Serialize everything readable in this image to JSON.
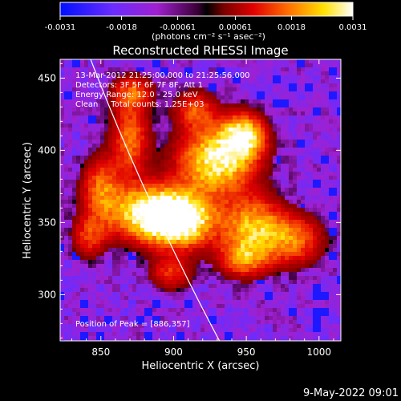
{
  "colorbar": {
    "tick_labels": [
      "-0.0031",
      "-0.0018",
      "-0.00061",
      "0.00061",
      "0.0018",
      "0.0031"
    ],
    "tick_values": [
      -0.0031,
      -0.0018,
      -0.00061,
      0.00061,
      0.0018,
      0.0031
    ],
    "range": [
      -0.0031,
      0.0031
    ],
    "units_label": "(photons cm⁻² s⁻¹ asec⁻²)"
  },
  "chart_data": {
    "type": "heatmap",
    "title": "Reconstructed RHESSI Image",
    "xlabel": "Heliocentric X (arcsec)",
    "ylabel": "Heliocentric Y (arcsec)",
    "xlim": [
      822,
      1015
    ],
    "ylim": [
      268,
      463
    ],
    "xticks": [
      850,
      900,
      950,
      1000
    ],
    "yticks": [
      300,
      350,
      400,
      450
    ],
    "annotations": [
      "13-Mar-2012 21:25:00.000 to 21:25:56.000",
      "Detectors: 3F 5F 6F 7F 8F, Att 1",
      "Energy Range: 12.0 - 25.0 keV",
      "Clean     Total counts: 1.25E+03"
    ],
    "peak_label": "Position of Peak = [886,357]",
    "peak": [
      886,
      357
    ],
    "limb_curve": {
      "x_top": 845,
      "x_bottom": 930
    },
    "sources": [
      {
        "x": 886,
        "y": 357,
        "sx": 22,
        "sy": 13,
        "amp": 1.0
      },
      {
        "x": 905,
        "y": 350,
        "sx": 16,
        "sy": 12,
        "amp": 0.85
      },
      {
        "x": 930,
        "y": 393,
        "sx": 18,
        "sy": 16,
        "amp": 0.95
      },
      {
        "x": 948,
        "y": 410,
        "sx": 10,
        "sy": 10,
        "amp": 0.85
      },
      {
        "x": 955,
        "y": 347,
        "sx": 14,
        "sy": 14,
        "amp": 0.7
      },
      {
        "x": 948,
        "y": 325,
        "sx": 12,
        "sy": 9,
        "amp": 0.55
      },
      {
        "x": 982,
        "y": 338,
        "sx": 14,
        "sy": 12,
        "amp": 0.55
      },
      {
        "x": 870,
        "y": 408,
        "sx": 9,
        "sy": 18,
        "amp": 0.55
      },
      {
        "x": 850,
        "y": 375,
        "sx": 9,
        "sy": 14,
        "amp": 0.5
      },
      {
        "x": 872,
        "y": 440,
        "sx": 10,
        "sy": 8,
        "amp": 0.45
      },
      {
        "x": 915,
        "y": 428,
        "sx": 10,
        "sy": 9,
        "amp": 0.45
      },
      {
        "x": 842,
        "y": 340,
        "sx": 8,
        "sy": 10,
        "amp": 0.4
      },
      {
        "x": 898,
        "y": 315,
        "sx": 10,
        "sy": 8,
        "amp": 0.4
      }
    ]
  },
  "footer": {
    "date": "9-May-2022 09:01"
  },
  "colors": {
    "background": "#000000",
    "text": "#ffffff"
  }
}
